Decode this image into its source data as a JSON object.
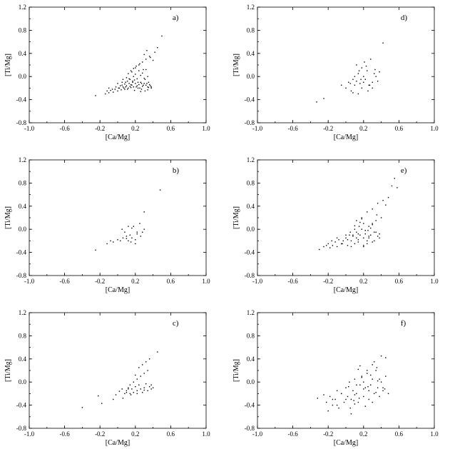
{
  "chart_data": [
    {
      "type": "scatter",
      "label": "a)",
      "xlabel": "[Ca/Mg]",
      "ylabel": "[Ti/Mg]",
      "xlim": [
        -1.0,
        1.0
      ],
      "ylim": [
        -0.8,
        1.2
      ],
      "xticks": [
        "-1.0",
        "-0.6",
        "-0.2",
        "0.2",
        "0.6",
        "1.0"
      ],
      "yticks": [
        "-0.8",
        "-0.4",
        "0.0",
        "0.4",
        "0.8",
        "1.2"
      ],
      "x": [
        -0.25,
        -0.14,
        -0.12,
        -0.1,
        -0.08,
        -0.05,
        -0.03,
        0.0,
        0.02,
        0.04,
        0.06,
        0.08,
        0.1,
        0.12,
        0.14,
        0.16,
        0.18,
        0.2,
        0.22,
        0.24,
        0.26,
        0.28,
        0.3,
        0.32,
        0.34,
        0.36,
        0.38,
        -0.1,
        -0.06,
        -0.02,
        0.01,
        0.05,
        0.09,
        0.13,
        0.17,
        0.21,
        0.25,
        0.29,
        0.33,
        0.37,
        0.05,
        0.08,
        0.11,
        0.15,
        0.19,
        0.23,
        0.27,
        0.31,
        0.35,
        0.1,
        0.14,
        0.18,
        0.22,
        0.26,
        0.3,
        0.34,
        0.12,
        0.16,
        0.2,
        0.24,
        0.28,
        0.32,
        0.0,
        0.03,
        0.07,
        0.11,
        0.15,
        0.19,
        0.23,
        0.27,
        0.31,
        0.35,
        0.2,
        0.24,
        0.28,
        0.32,
        0.36,
        0.4,
        0.42,
        0.45,
        0.5,
        0.3,
        0.33,
        0.37,
        0.15,
        0.18,
        0.21,
        0.25,
        0.29,
        0.06,
        0.09,
        0.13,
        0.17,
        0.26,
        0.34,
        0.38
      ],
      "y": [
        -0.33,
        -0.3,
        -0.25,
        -0.28,
        -0.24,
        -0.27,
        -0.22,
        -0.25,
        -0.2,
        -0.23,
        -0.18,
        -0.22,
        -0.16,
        -0.2,
        -0.17,
        -0.15,
        -0.18,
        -0.12,
        -0.16,
        -0.14,
        -0.1,
        -0.17,
        -0.12,
        -0.15,
        -0.18,
        -0.14,
        -0.2,
        -0.2,
        -0.22,
        -0.18,
        -0.2,
        -0.15,
        -0.18,
        -0.12,
        -0.1,
        -0.18,
        -0.2,
        -0.15,
        -0.12,
        -0.16,
        -0.1,
        -0.13,
        -0.08,
        -0.14,
        -0.06,
        -0.1,
        -0.12,
        -0.05,
        -0.1,
        -0.02,
        -0.05,
        0.0,
        -0.04,
        0.02,
        -0.03,
        0.0,
        0.05,
        0.08,
        0.04,
        0.1,
        0.06,
        0.12,
        -0.12,
        -0.16,
        -0.2,
        -0.22,
        -0.19,
        -0.24,
        -0.2,
        -0.22,
        -0.25,
        -0.19,
        0.15,
        0.2,
        0.25,
        0.3,
        0.35,
        0.28,
        0.42,
        0.5,
        0.7,
        0.38,
        0.45,
        0.33,
        0.1,
        0.14,
        0.18,
        0.22,
        0.12,
        -0.05,
        -0.1,
        -0.04,
        -0.08,
        -0.26,
        -0.23,
        -0.18
      ]
    },
    {
      "type": "scatter",
      "label": "d)",
      "xlabel": "[Ca/Mg]",
      "ylabel": "[Ti/Mg]",
      "xlim": [
        -1.0,
        1.0
      ],
      "ylim": [
        -0.8,
        1.2
      ],
      "xticks": [
        "-1.0",
        "-0.6",
        "-0.2",
        "0.2",
        "0.6",
        "1.0"
      ],
      "yticks": [
        "-0.8",
        "-0.4",
        "0.0",
        "0.4",
        "0.8",
        "1.2"
      ],
      "x": [
        -0.33,
        -0.25,
        -0.05,
        0.0,
        0.03,
        0.06,
        0.08,
        0.1,
        0.12,
        0.14,
        0.16,
        0.18,
        0.2,
        0.22,
        0.24,
        0.26,
        0.28,
        0.3,
        0.32,
        0.34,
        0.36,
        0.12,
        0.15,
        0.18,
        0.21,
        0.25,
        0.1,
        0.14,
        0.2,
        0.27,
        0.33,
        0.38,
        0.42,
        0.17,
        0.23,
        0.08,
        0.3,
        0.05
      ],
      "y": [
        -0.44,
        -0.38,
        -0.15,
        -0.2,
        -0.1,
        -0.25,
        -0.05,
        -0.15,
        -0.08,
        0.05,
        -0.12,
        0.15,
        0.0,
        -0.05,
        0.1,
        -0.15,
        0.3,
        -0.1,
        0.05,
        0.0,
        -0.08,
        0.2,
        0.1,
        -0.2,
        0.25,
        -0.25,
        0.0,
        -0.3,
        -0.1,
        -0.15,
        0.12,
        0.08,
        0.58,
        -0.05,
        0.18,
        -0.28,
        -0.2,
        -0.12
      ]
    },
    {
      "type": "scatter",
      "label": "b)",
      "xlabel": "[Ca/Mg]",
      "ylabel": "[Ti/Mg]",
      "xlim": [
        -1.0,
        1.0
      ],
      "ylim": [
        -0.8,
        1.2
      ],
      "xticks": [
        "-1.0",
        "-0.6",
        "-0.2",
        "0.2",
        "0.6",
        "1.0"
      ],
      "yticks": [
        "-0.8",
        "-0.4",
        "0.0",
        "0.4",
        "0.8",
        "1.2"
      ],
      "x": [
        -0.25,
        -0.12,
        -0.08,
        -0.05,
        0.0,
        0.03,
        0.06,
        0.08,
        0.1,
        0.12,
        0.14,
        0.16,
        0.18,
        0.2,
        0.22,
        0.25,
        0.28,
        0.3,
        0.12,
        0.16,
        0.2,
        0.26,
        0.3,
        0.48,
        0.05,
        0.1,
        0.15,
        0.22
      ],
      "y": [
        -0.36,
        -0.25,
        -0.2,
        -0.22,
        -0.18,
        -0.2,
        -0.15,
        -0.05,
        -0.12,
        -0.2,
        -0.1,
        -0.15,
        0.05,
        -0.18,
        -0.08,
        0.1,
        -0.05,
        0.3,
        0.05,
        0.02,
        -0.25,
        -0.12,
        0.0,
        0.68,
        0.0,
        -0.16,
        -0.22,
        -0.05
      ]
    },
    {
      "type": "scatter",
      "label": "e)",
      "xlabel": "[Ca/Mg]",
      "ylabel": "[Ti/Mg]",
      "xlim": [
        -1.0,
        1.0
      ],
      "ylim": [
        -0.8,
        1.2
      ],
      "xticks": [
        "-1.0",
        "-0.6",
        "-0.2",
        "0.2",
        "0.6",
        "1.0"
      ],
      "yticks": [
        "-0.8",
        "-0.4",
        "0.0",
        "0.4",
        "0.8",
        "1.2"
      ],
      "x": [
        -0.3,
        -0.25,
        -0.2,
        -0.18,
        -0.15,
        -0.12,
        -0.1,
        -0.08,
        -0.05,
        -0.03,
        0.0,
        0.02,
        0.04,
        0.06,
        0.08,
        0.1,
        0.12,
        0.14,
        0.16,
        0.18,
        0.2,
        0.22,
        0.24,
        0.26,
        0.28,
        0.3,
        0.32,
        0.34,
        0.36,
        0.38,
        0.4,
        -0.22,
        -0.16,
        -0.1,
        -0.04,
        0.02,
        0.08,
        0.14,
        0.2,
        0.26,
        0.32,
        0.38,
        0.05,
        0.1,
        0.15,
        0.2,
        0.25,
        0.3,
        0.35,
        0.12,
        0.18,
        0.24,
        0.3,
        0.36,
        0.42,
        0.48,
        0.52,
        0.58,
        0.45,
        0.55,
        0.0,
        0.06,
        0.12,
        0.18,
        0.24,
        0.3,
        0.16,
        0.22,
        0.28,
        0.2,
        0.1,
        0.14,
        0.26,
        0.34
      ],
      "y": [
        -0.35,
        -0.3,
        -0.25,
        -0.32,
        -0.28,
        -0.22,
        -0.3,
        -0.18,
        -0.25,
        -0.2,
        -0.15,
        -0.28,
        -0.1,
        -0.2,
        -0.12,
        -0.25,
        -0.05,
        -0.18,
        -0.1,
        0.0,
        -0.15,
        -0.08,
        -0.2,
        0.05,
        -0.1,
        0.1,
        -0.05,
        0.15,
        -0.12,
        -0.08,
        0.2,
        -0.28,
        -0.2,
        -0.15,
        -0.25,
        -0.18,
        -0.1,
        -0.22,
        -0.3,
        -0.12,
        -0.2,
        -0.15,
        -0.05,
        0.0,
        0.05,
        0.1,
        -0.02,
        0.08,
        0.25,
        0.15,
        0.2,
        0.3,
        0.35,
        0.45,
        0.5,
        0.55,
        0.75,
        0.72,
        0.42,
        0.88,
        -0.1,
        -0.3,
        -0.15,
        0.18,
        -0.25,
        -0.22,
        0.12,
        -0.02,
        0.02,
        -0.28,
        0.06,
        -0.08,
        -0.15,
        -0.05
      ]
    },
    {
      "type": "scatter",
      "label": "c)",
      "xlabel": "[Ca/Mg]",
      "ylabel": "[Ti/Mg]",
      "xlim": [
        -1.0,
        1.0
      ],
      "ylim": [
        -0.8,
        1.2
      ],
      "xticks": [
        "-1.0",
        "-0.6",
        "-0.2",
        "0.2",
        "0.6",
        "1.0"
      ],
      "yticks": [
        "-0.8",
        "-0.4",
        "0.0",
        "0.4",
        "0.8",
        "1.2"
      ],
      "x": [
        -0.4,
        -0.22,
        -0.18,
        -0.05,
        -0.02,
        0.02,
        0.05,
        0.08,
        0.1,
        0.12,
        0.14,
        0.16,
        0.18,
        0.2,
        0.22,
        0.24,
        0.26,
        0.28,
        0.3,
        0.32,
        0.34,
        0.36,
        0.38,
        0.4,
        0.1,
        0.14,
        0.18,
        0.22,
        0.26,
        0.3,
        0.34,
        0.2,
        0.24,
        0.28,
        0.32,
        0.36,
        0.45,
        0.15,
        0.22,
        0.3,
        0.38,
        0.06,
        0.12
      ],
      "y": [
        -0.44,
        -0.24,
        -0.37,
        -0.3,
        -0.22,
        -0.16,
        -0.12,
        -0.2,
        -0.15,
        -0.1,
        -0.2,
        -0.12,
        -0.18,
        -0.08,
        -0.15,
        -0.05,
        -0.12,
        -0.18,
        -0.1,
        -0.03,
        -0.15,
        -0.08,
        -0.12,
        -0.1,
        -0.18,
        -0.05,
        0.0,
        0.05,
        0.1,
        0.15,
        0.2,
        0.12,
        0.25,
        0.3,
        0.35,
        0.4,
        0.52,
        -0.22,
        -0.2,
        -0.14,
        -0.05,
        -0.28,
        -0.12
      ]
    },
    {
      "type": "scatter",
      "label": "f)",
      "xlabel": "[Ca/Mg]",
      "ylabel": "[Ti/Mg]",
      "xlim": [
        -1.0,
        1.0
      ],
      "ylim": [
        -0.8,
        1.2
      ],
      "xticks": [
        "-1.0",
        "-0.6",
        "-0.2",
        "0.2",
        "0.6",
        "1.0"
      ],
      "yticks": [
        "-0.8",
        "-0.4",
        "0.0",
        "0.4",
        "0.8",
        "1.2"
      ],
      "x": [
        -0.32,
        -0.25,
        -0.22,
        -0.18,
        -0.15,
        -0.12,
        -0.1,
        -0.08,
        -0.05,
        -0.02,
        0.0,
        0.02,
        0.04,
        0.06,
        0.08,
        0.1,
        0.12,
        0.14,
        0.16,
        0.18,
        0.2,
        0.22,
        0.24,
        0.26,
        0.28,
        0.3,
        0.32,
        0.34,
        0.36,
        0.38,
        0.4,
        0.42,
        0.45,
        0.48,
        -0.2,
        -0.1,
        0.0,
        0.05,
        0.1,
        0.15,
        0.2,
        0.25,
        0.3,
        0.35,
        0.4,
        0.45,
        0.12,
        0.18,
        0.24,
        0.3,
        0.36,
        0.42,
        0.06,
        0.14,
        0.22,
        0.28,
        0.34,
        -0.05,
        0.03,
        0.09,
        0.16,
        0.26,
        0.32,
        0.38,
        0.44,
        0.2,
        0.1,
        -0.15
      ],
      "y": [
        -0.28,
        -0.22,
        -0.35,
        -0.25,
        -0.4,
        -0.3,
        -0.15,
        -0.45,
        -0.2,
        -0.35,
        -0.1,
        -0.25,
        0.0,
        -0.3,
        -0.15,
        0.05,
        -0.2,
        -0.35,
        -0.05,
        0.1,
        -0.25,
        -0.1,
        0.15,
        -0.3,
        -0.05,
        0.05,
        -0.2,
        0.2,
        -0.1,
        -0.25,
        0.0,
        -0.15,
        0.1,
        -0.2,
        -0.5,
        -0.4,
        -0.3,
        -0.45,
        -0.38,
        -0.28,
        -0.12,
        -0.08,
        0.3,
        0.25,
        0.45,
        0.42,
        -0.05,
        0.08,
        0.2,
        -0.35,
        0.02,
        -0.1,
        -0.55,
        0.22,
        -0.42,
        0.12,
        -0.18,
        -0.2,
        -0.08,
        -0.32,
        0.28,
        -0.15,
        0.35,
        0.05,
        -0.12,
        0.0,
        -0.22,
        -0.3
      ]
    }
  ]
}
